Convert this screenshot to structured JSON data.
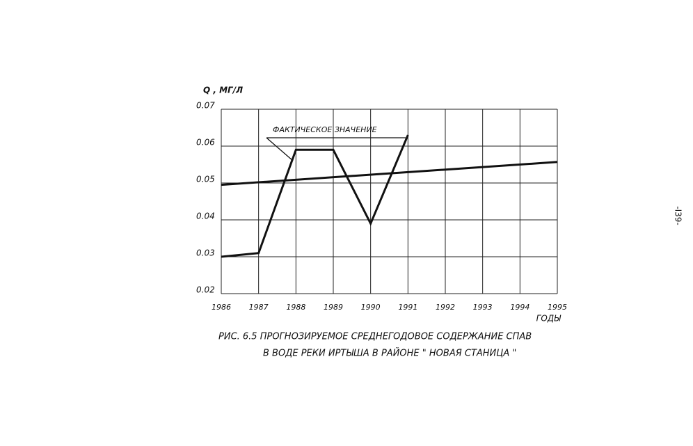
{
  "chart_data": {
    "type": "line",
    "y_label": "Q , МГ/Л",
    "x_label": "ГОДЫ",
    "caption": [
      "РИС. 6.5 ПРОГНОЗИРУЕМОЕ СРЕДНЕГОДОВОЕ СОДЕРЖАНИЕ СПАВ",
      "В ВОДЕ РЕКИ ИРТЫША В РАЙОНЕ \" НОВАЯ СТАНИЦА \""
    ],
    "xlim": [
      1986,
      1995
    ],
    "xticks": [
      1986,
      1987,
      1988,
      1989,
      1990,
      1991,
      1992,
      1993,
      1994,
      1995
    ],
    "ylim": [
      0.02,
      0.07
    ],
    "yticks": [
      0.02,
      0.03,
      0.04,
      0.05,
      0.06,
      0.07
    ],
    "grid": true,
    "series": [
      {
        "name": "ФАКТИЧЕСКОЕ ЗНАЧЕНИЕ",
        "color": "#111111",
        "x": [
          1986,
          1987,
          1988,
          1989,
          1990,
          1991
        ],
        "values": [
          0.03,
          0.031,
          0.059,
          0.059,
          0.039,
          0.063
        ]
      },
      {
        "color": "#111111",
        "x": [
          1986,
          1995
        ],
        "values": [
          0.0495,
          0.0557
        ]
      }
    ]
  },
  "page_number": "-I39-"
}
